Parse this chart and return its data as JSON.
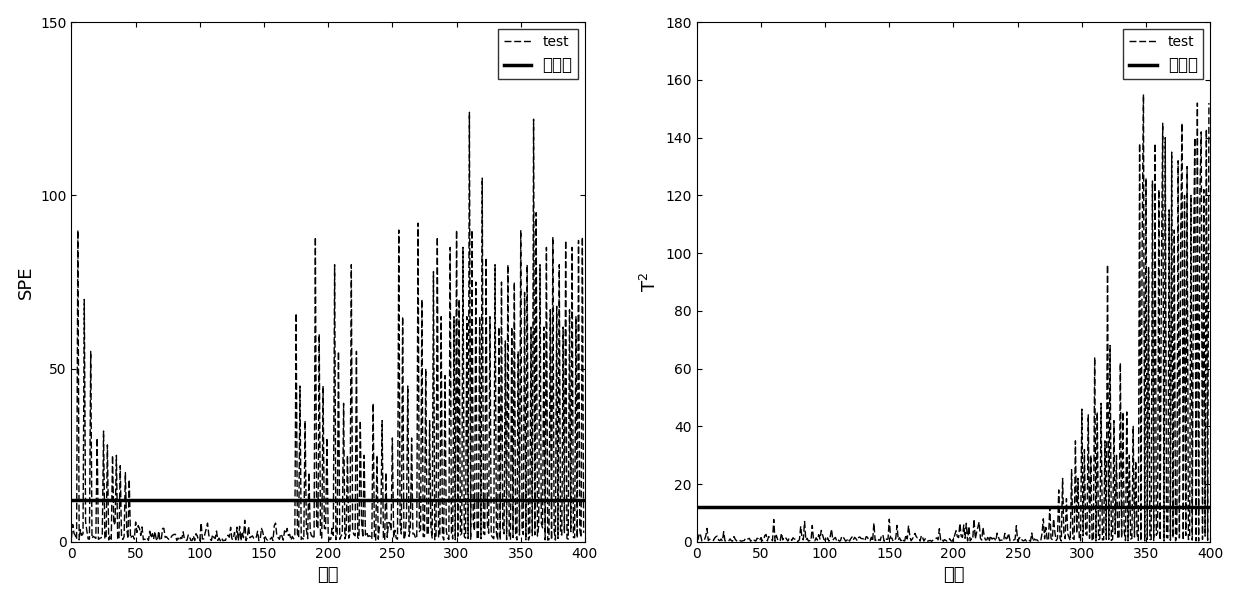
{
  "spe_ylim": [
    0,
    150
  ],
  "t2_ylim": [
    0,
    180
  ],
  "xlim": [
    0,
    400
  ],
  "spe_control_limit": 12,
  "t2_control_limit": 12,
  "xlabel": "样本",
  "ylabel_spe": "SPE",
  "ylabel_t2": "T$^2$",
  "legend_test": "test",
  "legend_control": "控制限",
  "spe_yticks": [
    0,
    50,
    100,
    150
  ],
  "t2_yticks": [
    0,
    20,
    40,
    60,
    80,
    100,
    120,
    140,
    160,
    180
  ],
  "xticks": [
    0,
    50,
    100,
    150,
    200,
    250,
    300,
    350,
    400
  ],
  "background_color": "#ffffff",
  "line_color": "#000000",
  "control_lw": 2.5,
  "test_lw": 1.0
}
